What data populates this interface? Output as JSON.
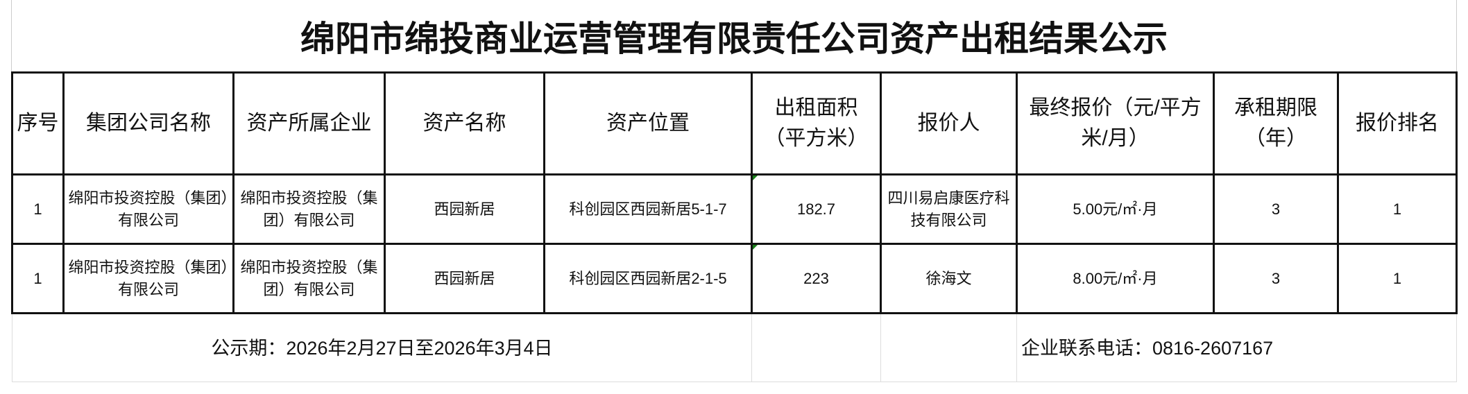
{
  "title": "绵阳市绵投商业运营管理有限责任公司资产出租结果公示",
  "headers": [
    "序号",
    "集团公司名称",
    "资产所属企业",
    "资产名称",
    "资产位置",
    "出租面积（平方米）",
    "报价人",
    "最终报价（元/平方米/月）",
    "承租期限（年）",
    "报价排名"
  ],
  "rows": [
    [
      "1",
      "绵阳市投资控股（集团）有限公司",
      "绵阳市投资控股（集团）有限公司",
      "西园新居",
      "科创园区西园新居5-1-7",
      "182.7",
      "四川易启康医疗科技有限公司",
      "5.00元/㎡·月",
      "3",
      "1"
    ],
    [
      "1",
      "绵阳市投资控股（集团）有限公司",
      "绵阳市投资控股（集团）有限公司",
      "西园新居",
      "科创园区西园新居2-1-5",
      "223",
      "徐海文",
      "8.00元/㎡·月",
      "3",
      "1"
    ]
  ],
  "footer": {
    "period": "公示期：2026年2月27日至2026年3月4日",
    "phone": "企业联系电话：0816-2607167"
  },
  "colors": {
    "comment_marker": "#1a7f1a",
    "border": "#111111"
  }
}
